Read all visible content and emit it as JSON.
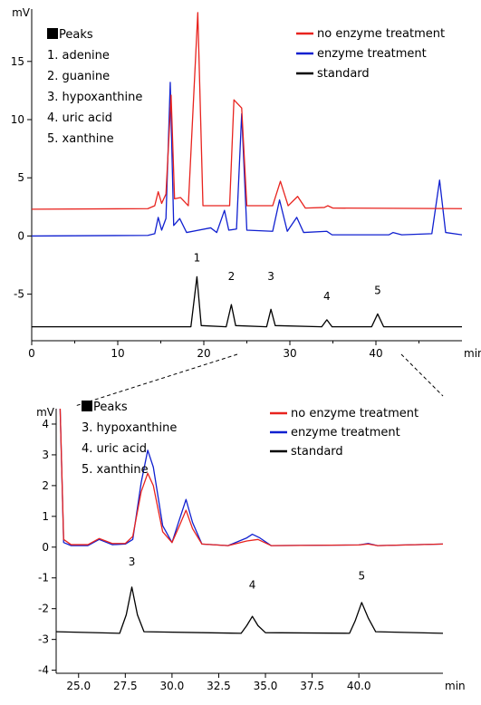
{
  "chart_data": [
    {
      "type": "line",
      "id": "overview",
      "y_unit": "mV",
      "x_unit": "min",
      "xlim": [
        0,
        50
      ],
      "ylim": [
        -9,
        19.5
      ],
      "x_ticks": [
        0,
        10,
        20,
        30,
        40
      ],
      "y_ticks": [
        -5,
        0,
        5,
        10,
        15
      ],
      "grid": false,
      "legend_position": "top-right",
      "peak_list": {
        "title": "Peaks",
        "items": [
          "1. adenine",
          "2. guanine",
          "3. hypoxanthine",
          "4. uric acid",
          "5. xanthine"
        ]
      },
      "series": [
        {
          "name": "no enzyme treatment",
          "color": "#e8231e",
          "baseline": 2.3,
          "points": [
            [
              0,
              2.3
            ],
            [
              13.5,
              2.35
            ],
            [
              14.3,
              2.6
            ],
            [
              14.7,
              3.8
            ],
            [
              15.1,
              2.8
            ],
            [
              15.6,
              3.6
            ],
            [
              16.2,
              12.1
            ],
            [
              16.6,
              3.2
            ],
            [
              17.3,
              3.3
            ],
            [
              18.2,
              2.6
            ],
            [
              19.3,
              19.2
            ],
            [
              19.9,
              2.6
            ],
            [
              23,
              2.6
            ],
            [
              23.5,
              11.7
            ],
            [
              24.4,
              11.0
            ],
            [
              25.0,
              2.6
            ],
            [
              28.0,
              2.6
            ],
            [
              28.9,
              4.7
            ],
            [
              29.8,
              2.6
            ],
            [
              30.9,
              3.4
            ],
            [
              31.8,
              2.4
            ],
            [
              34.0,
              2.45
            ],
            [
              34.4,
              2.6
            ],
            [
              35.0,
              2.4
            ],
            [
              50,
              2.35
            ]
          ]
        },
        {
          "name": "enzyme treatment",
          "color": "#1020d0",
          "baseline": 0,
          "points": [
            [
              0,
              0
            ],
            [
              13.5,
              0.05
            ],
            [
              14.3,
              0.2
            ],
            [
              14.7,
              1.6
            ],
            [
              15.1,
              0.5
            ],
            [
              15.6,
              1.5
            ],
            [
              16.1,
              13.2
            ],
            [
              16.5,
              0.9
            ],
            [
              17.2,
              1.5
            ],
            [
              18.0,
              0.3
            ],
            [
              20.8,
              0.7
            ],
            [
              21.5,
              0.3
            ],
            [
              22.4,
              2.2
            ],
            [
              22.9,
              0.5
            ],
            [
              23.8,
              0.6
            ],
            [
              24.4,
              10.5
            ],
            [
              25.0,
              0.5
            ],
            [
              28.0,
              0.4
            ],
            [
              28.8,
              3.1
            ],
            [
              29.7,
              0.4
            ],
            [
              30.8,
              1.6
            ],
            [
              31.6,
              0.3
            ],
            [
              34.3,
              0.4
            ],
            [
              34.9,
              0.1
            ],
            [
              41.5,
              0.1
            ],
            [
              42.0,
              0.3
            ],
            [
              43.0,
              0.1
            ],
            [
              46.5,
              0.2
            ],
            [
              47.4,
              4.8
            ],
            [
              48.1,
              0.3
            ],
            [
              50,
              0.1
            ]
          ]
        },
        {
          "name": "standard",
          "color": "#000000",
          "baseline": -7.8,
          "points": [
            [
              0,
              -7.8
            ],
            [
              18.5,
              -7.8
            ],
            [
              19.2,
              -3.5
            ],
            [
              19.7,
              -7.7
            ],
            [
              22.6,
              -7.8
            ],
            [
              23.2,
              -5.9
            ],
            [
              23.7,
              -7.7
            ],
            [
              27.3,
              -7.8
            ],
            [
              27.8,
              -6.3
            ],
            [
              28.3,
              -7.7
            ],
            [
              33.7,
              -7.8
            ],
            [
              34.3,
              -7.2
            ],
            [
              34.9,
              -7.8
            ],
            [
              39.5,
              -7.8
            ],
            [
              40.2,
              -6.7
            ],
            [
              40.9,
              -7.8
            ],
            [
              50,
              -7.8
            ]
          ]
        }
      ],
      "peak_labels": [
        {
          "text": "1",
          "x": 19.2,
          "y": -2.2
        },
        {
          "text": "2",
          "x": 23.2,
          "y": -3.8
        },
        {
          "text": "3",
          "x": 27.8,
          "y": -3.8
        },
        {
          "text": "4",
          "x": 34.3,
          "y": -5.5
        },
        {
          "text": "5",
          "x": 40.2,
          "y": -5.0
        }
      ]
    },
    {
      "type": "line",
      "id": "zoom",
      "y_unit": "mV",
      "x_unit": "min",
      "xlim": [
        23.8,
        44.5
      ],
      "ylim": [
        -4.1,
        4.5
      ],
      "x_ticks": [
        25.0,
        27.5,
        30.0,
        32.5,
        35.0,
        37.5,
        40.0
      ],
      "x_tick_labels": [
        "25.0",
        "27.5",
        "30.0",
        "32.5",
        "35.0",
        "37.5",
        "40.0"
      ],
      "y_ticks": [
        -4,
        -3,
        -2,
        -1,
        0,
        1,
        2,
        3,
        4
      ],
      "grid": false,
      "legend_position": "top-right",
      "peak_list": {
        "title": "Peaks",
        "items": [
          "3. hypoxanthine",
          "4. uric acid",
          "5. xanthine"
        ]
      },
      "series": [
        {
          "name": "no enzyme treatment",
          "color": "#e8231e",
          "points": [
            [
              23.8,
              4.5
            ],
            [
              24.0,
              4.8
            ],
            [
              24.2,
              0.25
            ],
            [
              24.6,
              0.08
            ],
            [
              25.5,
              0.08
            ],
            [
              26.1,
              0.28
            ],
            [
              26.8,
              0.12
            ],
            [
              27.5,
              0.12
            ],
            [
              27.9,
              0.35
            ],
            [
              28.35,
              1.8
            ],
            [
              28.7,
              2.4
            ],
            [
              29.0,
              2.0
            ],
            [
              29.5,
              0.5
            ],
            [
              30.0,
              0.15
            ],
            [
              30.4,
              0.7
            ],
            [
              30.75,
              1.2
            ],
            [
              31.1,
              0.6
            ],
            [
              31.6,
              0.1
            ],
            [
              33.0,
              0.05
            ],
            [
              34.0,
              0.2
            ],
            [
              34.6,
              0.25
            ],
            [
              35.3,
              0.05
            ],
            [
              40.0,
              0.07
            ],
            [
              40.5,
              0.1
            ],
            [
              41.0,
              0.05
            ],
            [
              44.5,
              0.1
            ]
          ]
        },
        {
          "name": "enzyme treatment",
          "color": "#1020d0",
          "points": [
            [
              23.8,
              4.5
            ],
            [
              24.0,
              4.8
            ],
            [
              24.2,
              0.15
            ],
            [
              24.6,
              0.05
            ],
            [
              25.5,
              0.05
            ],
            [
              26.1,
              0.25
            ],
            [
              26.8,
              0.08
            ],
            [
              27.5,
              0.1
            ],
            [
              27.9,
              0.25
            ],
            [
              28.35,
              2.1
            ],
            [
              28.7,
              3.15
            ],
            [
              29.0,
              2.6
            ],
            [
              29.5,
              0.7
            ],
            [
              30.0,
              0.15
            ],
            [
              30.4,
              0.9
            ],
            [
              30.75,
              1.55
            ],
            [
              31.1,
              0.8
            ],
            [
              31.6,
              0.1
            ],
            [
              33.0,
              0.05
            ],
            [
              34.0,
              0.3
            ],
            [
              34.3,
              0.42
            ],
            [
              34.7,
              0.3
            ],
            [
              35.3,
              0.05
            ],
            [
              40.0,
              0.07
            ],
            [
              40.5,
              0.12
            ],
            [
              41.0,
              0.05
            ],
            [
              44.5,
              0.1
            ]
          ]
        },
        {
          "name": "standard",
          "color": "#000000",
          "points": [
            [
              23.8,
              -2.75
            ],
            [
              27.2,
              -2.8
            ],
            [
              27.55,
              -2.2
            ],
            [
              27.85,
              -1.3
            ],
            [
              28.15,
              -2.2
            ],
            [
              28.5,
              -2.75
            ],
            [
              33.7,
              -2.8
            ],
            [
              34.0,
              -2.55
            ],
            [
              34.3,
              -2.25
            ],
            [
              34.6,
              -2.55
            ],
            [
              35.0,
              -2.78
            ],
            [
              39.5,
              -2.8
            ],
            [
              39.8,
              -2.4
            ],
            [
              40.15,
              -1.8
            ],
            [
              40.5,
              -2.3
            ],
            [
              40.9,
              -2.75
            ],
            [
              44.5,
              -2.8
            ]
          ]
        }
      ],
      "peak_labels": [
        {
          "text": "3",
          "x": 27.85,
          "y": -0.6
        },
        {
          "text": "4",
          "x": 34.3,
          "y": -1.35
        },
        {
          "text": "5",
          "x": 40.15,
          "y": -1.05
        }
      ]
    }
  ]
}
